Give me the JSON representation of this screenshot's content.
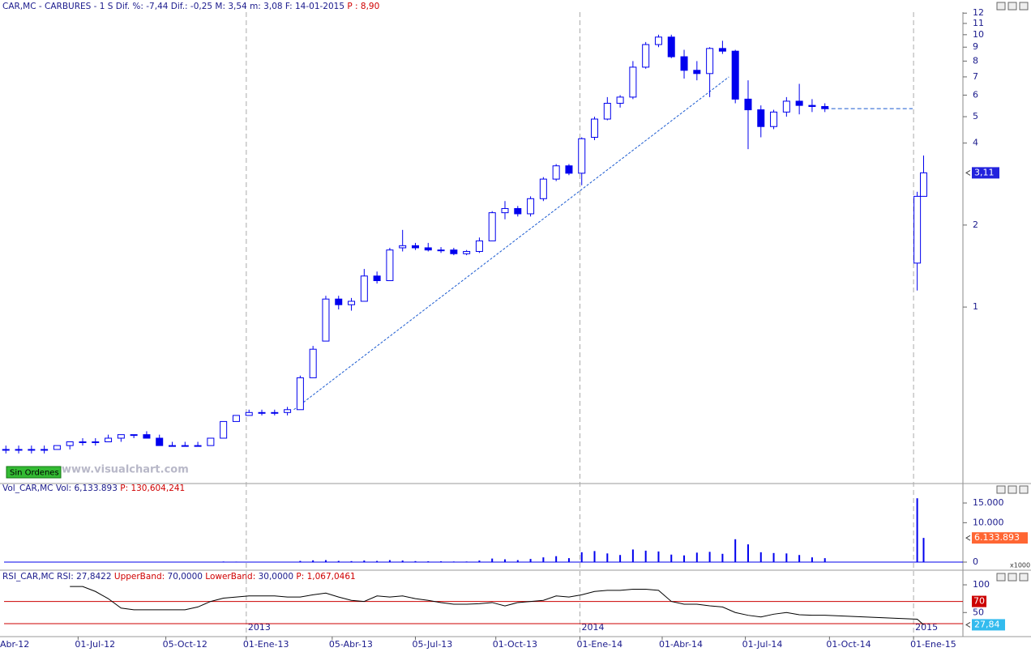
{
  "watermark": "www.visualchart.com",
  "order_button": "Sin Ordenes",
  "chart_data": [
    {
      "type": "candlestick",
      "title": "CAR,MC  -  CARBURES  -    1 S",
      "stats": "Dif. %: -7,44  Dif.: -0,25  M: 3,54  m: 3,08  F: 14-01-2015",
      "extra": "P : 8,90",
      "x": [
        "2012-04-13",
        "2012-04-27",
        "2012-05-11",
        "2012-05-25",
        "2012-06-08",
        "2012-06-22",
        "2012-07-06",
        "2012-07-20",
        "2012-08-03",
        "2012-08-17",
        "2012-08-31",
        "2012-09-14",
        "2012-09-28",
        "2012-10-12",
        "2012-10-26",
        "2012-11-09",
        "2012-11-23",
        "2012-12-07",
        "2012-12-21",
        "2013-01-04",
        "2013-01-18",
        "2013-02-01",
        "2013-02-15",
        "2013-03-01",
        "2013-03-15",
        "2013-03-29",
        "2013-04-12",
        "2013-04-26",
        "2013-05-10",
        "2013-05-24",
        "2013-06-07",
        "2013-06-21",
        "2013-07-05",
        "2013-07-19",
        "2013-08-02",
        "2013-08-16",
        "2013-08-30",
        "2013-09-13",
        "2013-09-27",
        "2013-10-11",
        "2013-10-25",
        "2013-11-08",
        "2013-11-22",
        "2013-12-06",
        "2013-12-20",
        "2014-01-03",
        "2014-01-17",
        "2014-01-31",
        "2014-02-14",
        "2014-02-28",
        "2014-03-14",
        "2014-03-28",
        "2014-04-11",
        "2014-04-25",
        "2014-05-09",
        "2014-05-23",
        "2014-06-06",
        "2014-06-20",
        "2014-07-04",
        "2014-07-18",
        "2014-08-01",
        "2014-08-15",
        "2014-08-29",
        "2014-09-12",
        "2014-09-26",
        "2015-01-05",
        "2015-01-12"
      ],
      "open": [
        0.3,
        0.3,
        0.3,
        0.3,
        0.3,
        0.31,
        0.32,
        0.32,
        0.32,
        0.33,
        0.34,
        0.34,
        0.33,
        0.31,
        0.31,
        0.31,
        0.31,
        0.33,
        0.38,
        0.4,
        0.41,
        0.41,
        0.41,
        0.42,
        0.55,
        0.75,
        1.07,
        1.02,
        1.05,
        1.3,
        1.25,
        1.65,
        1.68,
        1.65,
        1.62,
        1.62,
        1.57,
        1.6,
        1.75,
        2.22,
        2.3,
        2.2,
        2.5,
        2.95,
        3.3,
        3.1,
        4.2,
        4.9,
        5.6,
        5.9,
        7.6,
        9.2,
        9.8,
        8.3,
        7.4,
        7.2,
        8.9,
        8.7,
        5.8,
        5.3,
        4.6,
        5.2,
        5.7,
        5.5,
        5.45,
        1.45,
        2.55
      ],
      "high": [
        0.31,
        0.31,
        0.31,
        0.31,
        0.31,
        0.32,
        0.33,
        0.33,
        0.34,
        0.34,
        0.34,
        0.35,
        0.34,
        0.32,
        0.32,
        0.32,
        0.33,
        0.38,
        0.4,
        0.42,
        0.42,
        0.42,
        0.43,
        0.56,
        0.72,
        1.1,
        1.1,
        1.08,
        1.38,
        1.35,
        1.65,
        1.92,
        1.72,
        1.72,
        1.66,
        1.65,
        1.62,
        1.8,
        2.25,
        2.45,
        2.35,
        2.55,
        3.0,
        3.35,
        3.35,
        4.2,
        5.0,
        5.9,
        6.0,
        8.0,
        9.4,
        10.0,
        10.0,
        8.8,
        8.0,
        9.0,
        9.5,
        8.8,
        6.8,
        5.5,
        5.3,
        5.9,
        6.6,
        5.8,
        5.6,
        2.65,
        3.6
      ],
      "low": [
        0.29,
        0.29,
        0.29,
        0.29,
        0.3,
        0.3,
        0.31,
        0.31,
        0.32,
        0.32,
        0.33,
        0.33,
        0.31,
        0.31,
        0.31,
        0.31,
        0.31,
        0.33,
        0.38,
        0.4,
        0.4,
        0.4,
        0.4,
        0.42,
        0.55,
        0.75,
        0.98,
        0.97,
        1.05,
        1.22,
        1.25,
        1.6,
        1.62,
        1.6,
        1.58,
        1.55,
        1.55,
        1.58,
        1.75,
        2.1,
        2.15,
        2.15,
        2.45,
        2.9,
        3.05,
        2.8,
        4.1,
        4.85,
        5.4,
        5.8,
        7.5,
        9.0,
        8.2,
        6.9,
        6.8,
        5.9,
        8.5,
        5.6,
        3.8,
        4.2,
        4.5,
        5.0,
        5.1,
        5.2,
        5.2,
        1.15,
        2.55
      ],
      "close": [
        0.3,
        0.3,
        0.3,
        0.3,
        0.31,
        0.32,
        0.32,
        0.32,
        0.33,
        0.34,
        0.34,
        0.33,
        0.31,
        0.31,
        0.31,
        0.31,
        0.33,
        0.38,
        0.4,
        0.41,
        0.41,
        0.41,
        0.42,
        0.55,
        0.7,
        1.07,
        1.02,
        1.05,
        1.3,
        1.25,
        1.62,
        1.68,
        1.65,
        1.62,
        1.62,
        1.57,
        1.6,
        1.75,
        2.22,
        2.3,
        2.2,
        2.5,
        2.95,
        3.3,
        3.1,
        4.15,
        4.9,
        5.6,
        5.9,
        7.6,
        9.2,
        9.8,
        8.3,
        7.4,
        7.2,
        8.9,
        8.7,
        5.8,
        5.3,
        4.6,
        5.2,
        5.7,
        5.5,
        5.45,
        5.35,
        2.55,
        3.11
      ],
      "color": "#0000ee",
      "log_scale": true,
      "ylim": [
        0.228,
        12.1
      ],
      "yticks": [
        1,
        2,
        4,
        5,
        6,
        7,
        8,
        9,
        10,
        11,
        12
      ],
      "xlim": [
        "2012-04-11",
        "2015-02-24"
      ],
      "xticks": [
        {
          "value": "2012-04-01",
          "label": "Abr-12"
        },
        {
          "value": "2012-07-01",
          "label": "01-Jul-12"
        },
        {
          "value": "2012-10-05",
          "label": "05-Oct-12"
        },
        {
          "value": "2013-01-01",
          "label": "01-Ene-13"
        },
        {
          "value": "2013-04-05",
          "label": "05-Abr-13"
        },
        {
          "value": "2013-07-05",
          "label": "05-Jul-13"
        },
        {
          "value": "2013-10-01",
          "label": "01-Oct-13"
        },
        {
          "value": "2014-01-01",
          "label": "01-Ene-14"
        },
        {
          "value": "2014-04-01",
          "label": "01-Abr-14"
        },
        {
          "value": "2014-07-01",
          "label": "01-Jul-14"
        },
        {
          "value": "2014-10-01",
          "label": "01-Oct-14"
        },
        {
          "value": "2015-01-01",
          "label": "01-Ene-15"
        }
      ],
      "year_ticks": [
        {
          "value": "2013-01-01",
          "label": "2013"
        },
        {
          "value": "2014-01-01",
          "label": "2014"
        },
        {
          "value": "2015-01-01",
          "label": "2015"
        }
      ],
      "trendline": {
        "x": [
          "2013-02-22",
          "2014-06-13"
        ],
        "values": [
          0.42,
          7.0
        ]
      },
      "halt_line": {
        "x": [
          "2014-09-26",
          "2014-12-31"
        ],
        "values": [
          5.35,
          5.35
        ]
      },
      "last_tag": {
        "value": 3.11,
        "label": "3,11"
      }
    },
    {
      "type": "bar",
      "title": "Vol_CAR,MC Vol:",
      "title_value": "6,133.893",
      "extra": "P: 130,604,241",
      "values": [
        30,
        20,
        20,
        20,
        20,
        30,
        40,
        30,
        30,
        30,
        20,
        20,
        30,
        20,
        20,
        20,
        40,
        150,
        120,
        80,
        60,
        60,
        70,
        300,
        450,
        500,
        300,
        250,
        400,
        300,
        500,
        400,
        250,
        200,
        200,
        150,
        150,
        400,
        900,
        700,
        500,
        800,
        1200,
        1500,
        1000,
        2500,
        2800,
        2200,
        1800,
        3200,
        2900,
        2700,
        1900,
        1700,
        2400,
        2600,
        2100,
        5800,
        4500,
        2500,
        2300,
        2200,
        1800,
        1200,
        1000,
        16200,
        6133.893
      ],
      "color": "#0000ee",
      "ylim": [
        0,
        18500
      ],
      "yticks": [
        0,
        {
          "value": 10000,
          "label": "10.000"
        },
        {
          "value": 15000,
          "label": "15.000"
        }
      ],
      "unit_label": "x1000",
      "last_tag": {
        "value": 6133.893,
        "label": "6.133.893"
      }
    },
    {
      "type": "line",
      "title": "RSI_CAR,MC RSI:",
      "title_value": "27,8422",
      "upper_band_label": "UpperBand:",
      "upper_band_text": "70,0000",
      "lower_band_label": "LowerBand:",
      "lower_band_text": "30,0000",
      "extra": "P: 1,067,0461",
      "values": [
        null,
        null,
        null,
        null,
        null,
        97,
        97,
        88,
        75,
        58,
        55,
        55,
        55,
        55,
        55,
        60,
        70,
        76,
        78,
        80,
        80,
        80,
        78,
        78,
        82,
        85,
        78,
        72,
        70,
        80,
        78,
        80,
        75,
        72,
        68,
        65,
        65,
        66,
        68,
        62,
        68,
        70,
        72,
        80,
        78,
        82,
        88,
        90,
        90,
        92,
        92,
        90,
        70,
        65,
        65,
        62,
        60,
        50,
        45,
        42,
        47,
        50,
        46,
        45,
        45,
        38,
        27.8422
      ],
      "color": "#000000",
      "band_color": "#cc0000",
      "upper_band": {
        "value": 70,
        "label": "70"
      },
      "lower_band": 30,
      "ylim": [
        8,
        122
      ],
      "yticks": [
        50,
        100
      ],
      "last_tag": {
        "value": 27.8422,
        "label": "27,84"
      }
    }
  ]
}
